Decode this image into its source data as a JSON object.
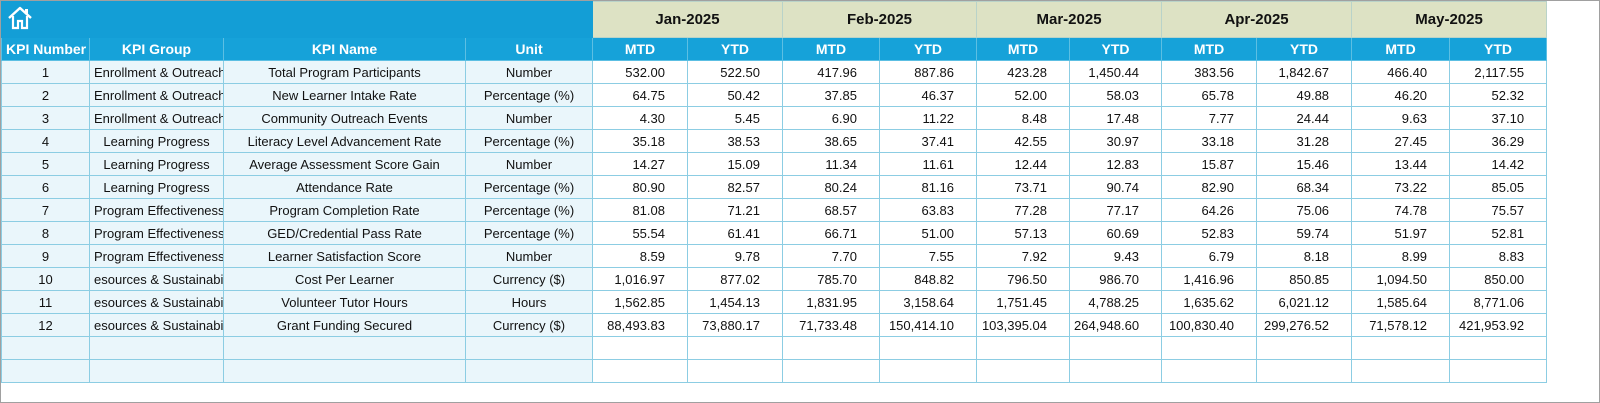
{
  "table": {
    "months": [
      "Jan-2025",
      "Feb-2025",
      "Mar-2025",
      "Apr-2025",
      "May-2025"
    ],
    "columns": [
      "KPI Number",
      "KPI Group",
      "KPI Name",
      "Unit"
    ],
    "period_columns": [
      "MTD",
      "YTD",
      "MTD",
      "YTD",
      "MTD",
      "YTD",
      "MTD",
      "YTD",
      "MTD",
      "YTD"
    ],
    "rows": [
      {
        "number": 1,
        "group": "Enrollment & Outreach",
        "name": "Total Program Participants",
        "unit": "Number",
        "values": [
          "532.00",
          "522.50",
          "417.96",
          "887.86",
          "423.28",
          "1,450.44",
          "383.56",
          "1,842.67",
          "466.40",
          "2,117.55"
        ]
      },
      {
        "number": 2,
        "group": "Enrollment & Outreach",
        "name": "New Learner Intake Rate",
        "unit": "Percentage (%)",
        "values": [
          "64.75",
          "50.42",
          "37.85",
          "46.37",
          "52.00",
          "58.03",
          "65.78",
          "49.88",
          "46.20",
          "52.32"
        ]
      },
      {
        "number": 3,
        "group": "Enrollment & Outreach",
        "name": "Community Outreach Events",
        "unit": "Number",
        "values": [
          "4.30",
          "5.45",
          "6.90",
          "11.22",
          "8.48",
          "17.48",
          "7.77",
          "24.44",
          "9.63",
          "37.10"
        ]
      },
      {
        "number": 4,
        "group": "Learning Progress",
        "name": "Literacy Level Advancement Rate",
        "unit": "Percentage (%)",
        "values": [
          "35.18",
          "38.53",
          "38.65",
          "37.41",
          "42.55",
          "30.97",
          "33.18",
          "31.28",
          "27.45",
          "36.29"
        ]
      },
      {
        "number": 5,
        "group": "Learning Progress",
        "name": "Average Assessment Score Gain",
        "unit": "Number",
        "values": [
          "14.27",
          "15.09",
          "11.34",
          "11.61",
          "12.44",
          "12.83",
          "15.87",
          "15.46",
          "13.44",
          "14.42"
        ]
      },
      {
        "number": 6,
        "group": "Learning Progress",
        "name": "Attendance Rate",
        "unit": "Percentage (%)",
        "values": [
          "80.90",
          "82.57",
          "80.24",
          "81.16",
          "73.71",
          "90.74",
          "82.90",
          "68.34",
          "73.22",
          "85.05"
        ]
      },
      {
        "number": 7,
        "group": "Program Effectiveness",
        "name": "Program Completion Rate",
        "unit": "Percentage (%)",
        "values": [
          "81.08",
          "71.21",
          "68.57",
          "63.83",
          "77.28",
          "77.17",
          "64.26",
          "75.06",
          "74.78",
          "75.57"
        ]
      },
      {
        "number": 8,
        "group": "Program Effectiveness",
        "name": "GED/Credential Pass Rate",
        "unit": "Percentage (%)",
        "values": [
          "55.54",
          "61.41",
          "66.71",
          "51.00",
          "57.13",
          "60.69",
          "52.83",
          "59.74",
          "51.97",
          "52.81"
        ]
      },
      {
        "number": 9,
        "group": "Program Effectiveness",
        "name": "Learner Satisfaction Score",
        "unit": "Number",
        "values": [
          "8.59",
          "9.78",
          "7.70",
          "7.55",
          "7.92",
          "9.43",
          "6.79",
          "8.18",
          "8.99",
          "8.83"
        ]
      },
      {
        "number": 10,
        "group": "esources & Sustainabili",
        "name": "Cost Per Learner",
        "unit": "Currency ($)",
        "values": [
          "1,016.97",
          "877.02",
          "785.70",
          "848.82",
          "796.50",
          "986.70",
          "1,416.96",
          "850.85",
          "1,094.50",
          "850.00"
        ]
      },
      {
        "number": 11,
        "group": "esources & Sustainabili",
        "name": "Volunteer Tutor Hours",
        "unit": "Hours",
        "values": [
          "1,562.85",
          "1,454.13",
          "1,831.95",
          "3,158.64",
          "1,751.45",
          "4,788.25",
          "1,635.62",
          "6,021.12",
          "1,585.64",
          "8,771.06"
        ]
      },
      {
        "number": 12,
        "group": "esources & Sustainabili",
        "name": "Grant Funding Secured",
        "unit": "Currency ($)",
        "values": [
          "88,493.83",
          "73,880.17",
          "71,733.48",
          "150,414.10",
          "103,395.04",
          "264,948.60",
          "100,830.40",
          "299,276.52",
          "71,578.12",
          "421,953.92"
        ]
      }
    ]
  }
}
